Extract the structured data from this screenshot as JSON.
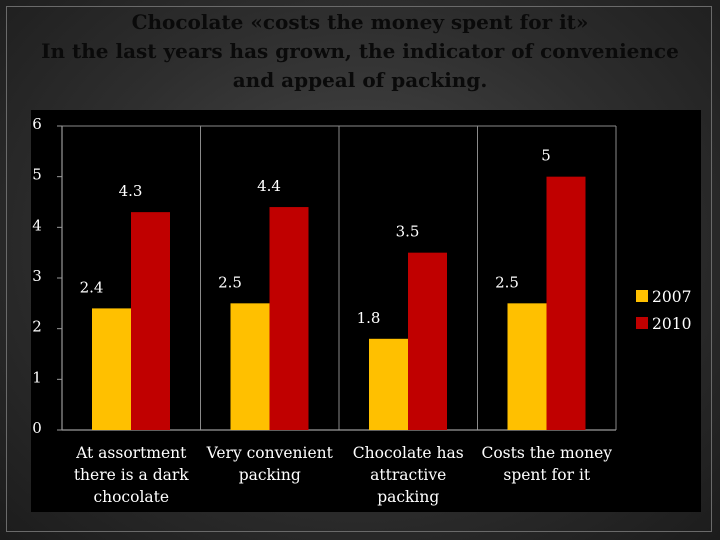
{
  "chart_data": {
    "type": "bar",
    "title_lines": [
      "Chocolate «costs the money spent for it»",
      "In the last years has grown, the indicator of convenience",
      "and appeal of packing."
    ],
    "categories": [
      [
        "At assortment",
        "there is a dark",
        "chocolate"
      ],
      [
        "Very convenient",
        "packing"
      ],
      [
        "Chocolate has",
        "attractive",
        "packing"
      ],
      [
        "Costs the money",
        "spent for it"
      ]
    ],
    "series": [
      {
        "name": "2007",
        "color": "#FFC000",
        "values": [
          2.4,
          2.5,
          1.8,
          2.5
        ]
      },
      {
        "name": "2010",
        "color": "#C00000",
        "values": [
          4.3,
          4.4,
          3.5,
          5
        ]
      }
    ],
    "ylim": [
      0,
      6
    ],
    "yticks": [
      "0",
      "1",
      "2",
      "3",
      "4",
      "5",
      "6"
    ],
    "data_labels": [
      [
        "2.4",
        "2.5",
        "1.8",
        "2.5"
      ],
      [
        "4.3",
        "4.4",
        "3.5",
        "5"
      ]
    ],
    "grid": "vertical category lines",
    "legend": "right"
  }
}
